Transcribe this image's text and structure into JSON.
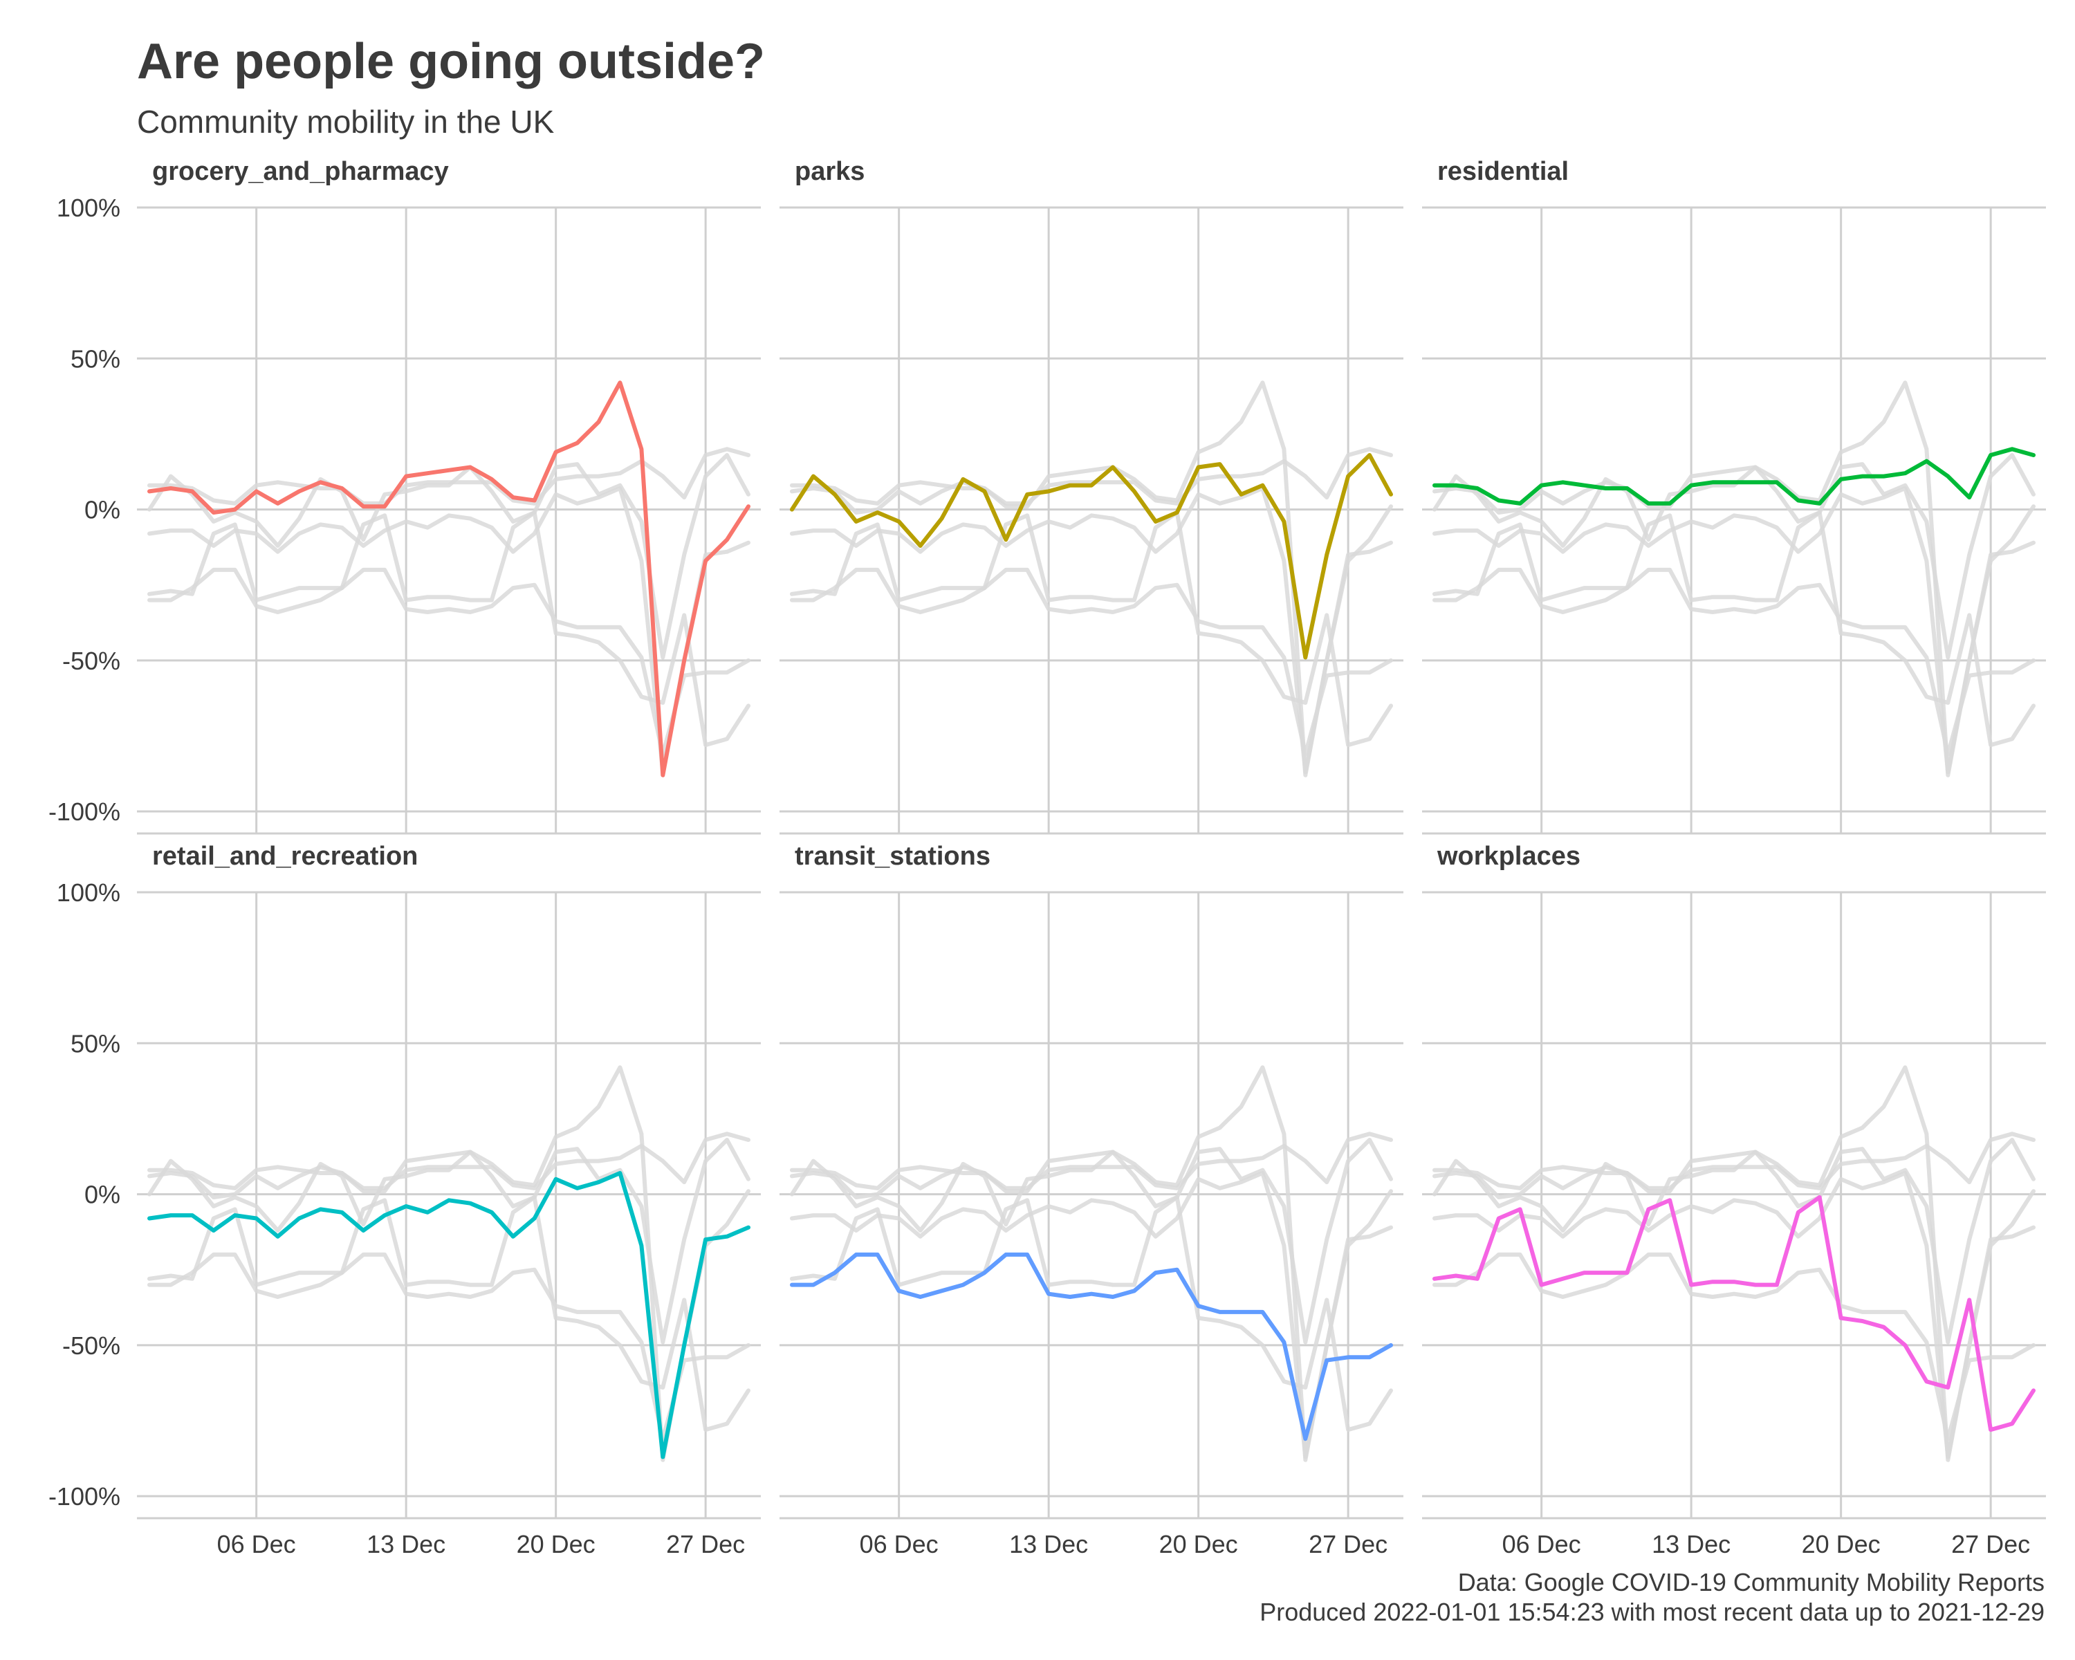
{
  "title": "Are people going outside?",
  "subtitle": "Community mobility in the UK",
  "caption_line1": "Data: Google COVID-19 Community Mobility Reports",
  "caption_line2": "Produced 2022-01-01 15:54:23 with most recent data up to 2021-12-29",
  "chart_data": {
    "type": "line",
    "facet_layout": "3 columns x 2 rows, shared axes",
    "y_ticks": [
      "100%",
      "50%",
      "0%",
      "-50%",
      "-100%"
    ],
    "y_tick_values": [
      100,
      50,
      0,
      -50,
      -100
    ],
    "ylim": [
      -105,
      100
    ],
    "x_tick_labels": [
      "06 Dec",
      "13 Dec",
      "20 Dec",
      "27 Dec"
    ],
    "x_tick_days": [
      6,
      13,
      20,
      27
    ],
    "xlim": [
      1,
      29
    ],
    "x": [
      1,
      2,
      3,
      4,
      5,
      6,
      7,
      8,
      9,
      10,
      11,
      12,
      13,
      14,
      15,
      16,
      17,
      18,
      19,
      20,
      21,
      22,
      23,
      24,
      25,
      26,
      27,
      28,
      29
    ],
    "x_unit": "day of December 2021",
    "grid": true,
    "background_line_color": "#d9d9d9",
    "series": [
      {
        "name": "grocery_and_pharmacy",
        "color": "#F8766D",
        "values": [
          6,
          7,
          6,
          -1,
          0,
          6,
          2,
          6,
          9,
          7,
          1,
          1,
          11,
          12,
          13,
          14,
          10,
          4,
          3,
          19,
          22,
          29,
          42,
          20,
          -88,
          -50,
          -17,
          -10,
          1
        ]
      },
      {
        "name": "parks",
        "color": "#B79F00",
        "values": [
          0,
          11,
          5,
          -4,
          -1,
          -4,
          -12,
          -3,
          10,
          6,
          -10,
          5,
          6,
          8,
          8,
          14,
          6,
          -4,
          -1,
          14,
          15,
          5,
          8,
          -4,
          -49,
          -15,
          11,
          18,
          5
        ]
      },
      {
        "name": "residential",
        "color": "#00BA38",
        "values": [
          8,
          8,
          7,
          3,
          2,
          8,
          9,
          8,
          7,
          7,
          2,
          2,
          8,
          9,
          9,
          9,
          9,
          3,
          2,
          10,
          11,
          11,
          12,
          16,
          11,
          4,
          18,
          20,
          18
        ]
      },
      {
        "name": "retail_and_recreation",
        "color": "#00BFC4",
        "values": [
          -8,
          -7,
          -7,
          -12,
          -7,
          -8,
          -14,
          -8,
          -5,
          -6,
          -12,
          -7,
          -4,
          -6,
          -2,
          -3,
          -6,
          -14,
          -8,
          5,
          2,
          4,
          7,
          -17,
          -87,
          -50,
          -15,
          -14,
          -11
        ]
      },
      {
        "name": "transit_stations",
        "color": "#619CFF",
        "values": [
          -30,
          -30,
          -26,
          -20,
          -20,
          -32,
          -34,
          -32,
          -30,
          -26,
          -20,
          -20,
          -33,
          -34,
          -33,
          -34,
          -32,
          -26,
          -25,
          -37,
          -39,
          -39,
          -39,
          -49,
          -81,
          -55,
          -54,
          -54,
          -50
        ]
      },
      {
        "name": "workplaces",
        "color": "#F564E3",
        "values": [
          -28,
          -27,
          -28,
          -8,
          -5,
          -30,
          -28,
          -26,
          -26,
          -26,
          -5,
          -2,
          -30,
          -29,
          -29,
          -30,
          -30,
          -6,
          -1,
          -41,
          -42,
          -44,
          -50,
          -62,
          -64,
          -35,
          -78,
          -76,
          -65
        ]
      }
    ]
  }
}
